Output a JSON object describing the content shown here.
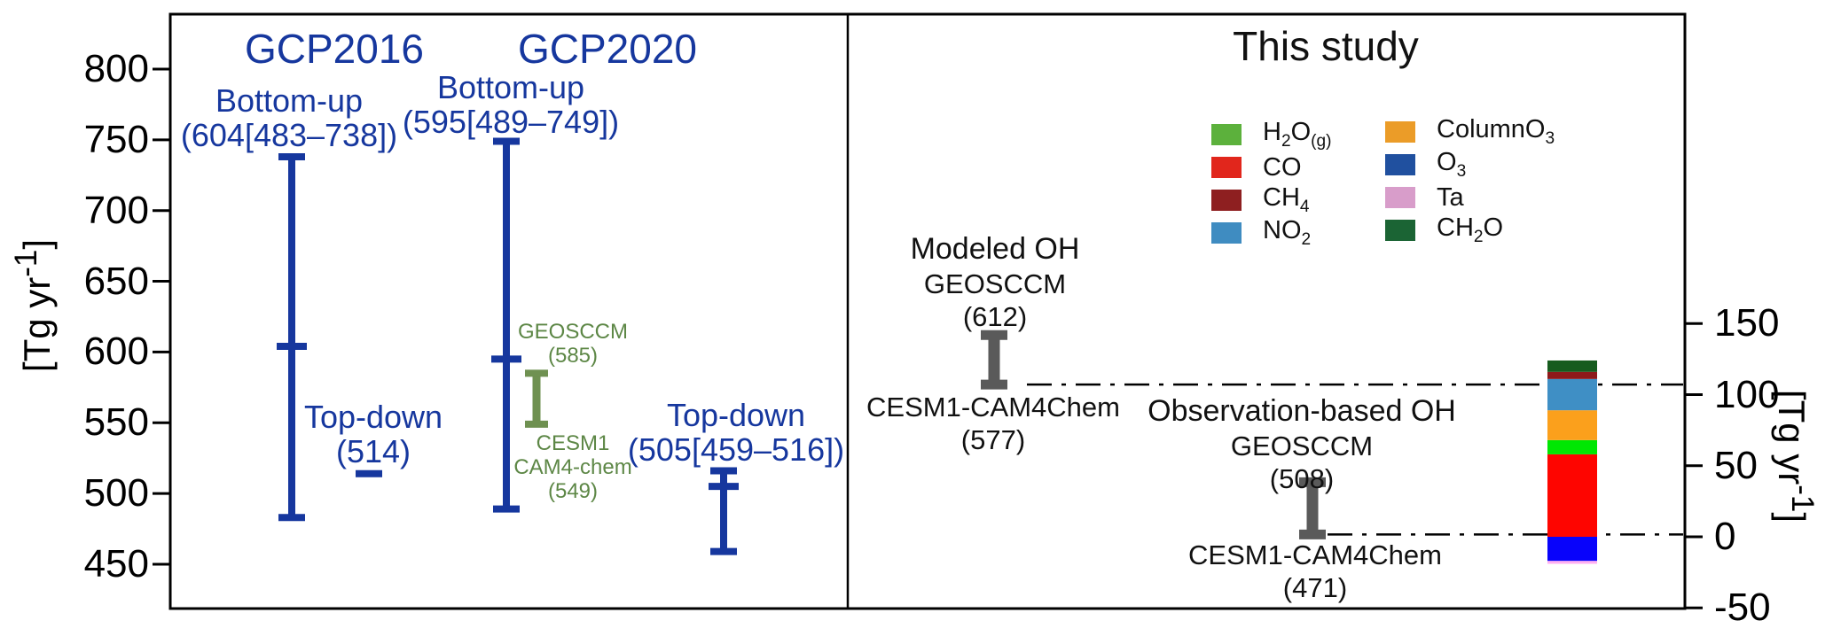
{
  "colors": {
    "blue_text": "#16379e",
    "green_text": "#5d8746",
    "black_text": "#111111",
    "axis": "#000000",
    "gray_bar": "#5a5a5a",
    "green_bar": "#6f9151"
  },
  "left_panel": {
    "gcp2016": {
      "title": "GCP2016",
      "bottom_up": [
        "Bottom-up",
        "(604[483–738])"
      ],
      "top_down": [
        "Top-down",
        "(514)"
      ]
    },
    "gcp2020": {
      "title": "GCP2020",
      "bottom_up": [
        "Bottom-up",
        "(595[489–749])"
      ],
      "models_high": [
        "GEOSCCM",
        "(585)"
      ],
      "models_low": [
        "CESM1",
        "CAM4-chem",
        "(549)"
      ],
      "top_down": [
        "Top-down",
        "(505[459–516])"
      ]
    }
  },
  "right_panel": {
    "title": "This study",
    "modeled_oh": {
      "heading": "Modeled OH",
      "model_high": "GEOSCCM",
      "value_high": "(612)",
      "model_low": "CESM1-CAM4Chem",
      "value_low": "(577)"
    },
    "observation_oh": {
      "heading": "Observation-based OH",
      "model_high": "GEOSCCM",
      "value_high": "(508)",
      "model_low": "CESM1-CAM4Chem",
      "value_low": "(471)"
    }
  },
  "chart_data": {
    "type": "composite",
    "description": "Methane chemical sink estimates [Tg yr-1]: GCP2016/GCP2020 error bars, this-study modeled vs observation-based OH, and stacked difference bar",
    "left_axis": {
      "label_html": "[Tg yr<sup>-1</sup>]",
      "ticks": [
        800,
        750,
        700,
        650,
        600,
        550,
        500,
        450
      ],
      "ylim": [
        415,
        840
      ]
    },
    "right_axis": {
      "label_html": "[Tg yr<sup>-1</sup>]",
      "ticks": [
        150,
        100,
        50,
        0,
        -50
      ],
      "ylim": [
        -54,
        369
      ]
    },
    "error_bars": [
      {
        "id": "gcp2016-bottom-up",
        "group": "GCP2016",
        "name": "Bottom-up",
        "mean": 604,
        "low": 483,
        "high": 738,
        "color": "#16379e"
      },
      {
        "id": "gcp2016-top-down",
        "group": "GCP2016",
        "name": "Top-down",
        "mean": 514,
        "color": "#16379e"
      },
      {
        "id": "gcp2020-bottom-up",
        "group": "GCP2020",
        "name": "Bottom-up",
        "mean": 595,
        "low": 489,
        "high": 749,
        "color": "#16379e"
      },
      {
        "id": "gcp2020-models",
        "group": "GCP2020",
        "name": "GEOSCCM / CESM1 CAM4-chem",
        "high": 585,
        "low": 549,
        "color": "#6f9151"
      },
      {
        "id": "gcp2020-top-down",
        "group": "GCP2020",
        "name": "Top-down",
        "mean": 505,
        "low": 459,
        "high": 516,
        "color": "#16379e"
      },
      {
        "id": "modeled-oh",
        "group": "This study",
        "name": "Modeled OH",
        "high": 612,
        "low": 577,
        "color": "#5a5a5a"
      },
      {
        "id": "observation-oh",
        "group": "This study",
        "name": "Observation-based OH",
        "high": 508,
        "low": 471,
        "color": "#5a5a5a"
      }
    ],
    "reference_lines": [
      {
        "value": 577,
        "note": "dash-dot line at modeled-OH CESM1-CAM4Chem level"
      },
      {
        "value": 471,
        "note": "dash-dot line at observation-based CESM1-CAM4Chem level"
      }
    ],
    "difference_bar": {
      "axis": "right",
      "segments": [
        {
          "name": "CO",
          "value": 58,
          "color": "#fe0500"
        },
        {
          "name": "H2O(g)",
          "value": 10,
          "color": "#00e703"
        },
        {
          "name": "ColumnO3",
          "value": 21,
          "color": "#fba01c"
        },
        {
          "name": "NO2",
          "value": 22,
          "color": "#3f8fc5"
        },
        {
          "name": "CH4",
          "value": 5,
          "color": "#8e1a1a"
        },
        {
          "name": "CH2O",
          "value": 8,
          "color": "#165c1e"
        },
        {
          "name": "O3",
          "value": -17,
          "color": "#0803fb"
        },
        {
          "name": "Ta",
          "value": -2,
          "color": "#ffaff2"
        }
      ]
    },
    "legend": {
      "columns": [
        [
          {
            "label_html": "H<sub>2</sub>O<sub>(g)</sub>",
            "color": "#5cb13c"
          },
          {
            "label_html": "CO",
            "color": "#e1261c"
          },
          {
            "label_html": "CH<sub>4</sub>",
            "color": "#8e1f20"
          },
          {
            "label_html": "NO<sub>2</sub>",
            "color": "#3f8cc1"
          }
        ],
        [
          {
            "label_html": "ColumnO<sub>3</sub>",
            "color": "#eb9c28"
          },
          {
            "label_html": "O<sub>3</sub>",
            "color": "#20509f"
          },
          {
            "label_html": "Ta",
            "color": "#d89dca"
          },
          {
            "label_html": "CH<sub>2</sub>O",
            "color": "#1b6434"
          }
        ]
      ]
    }
  }
}
